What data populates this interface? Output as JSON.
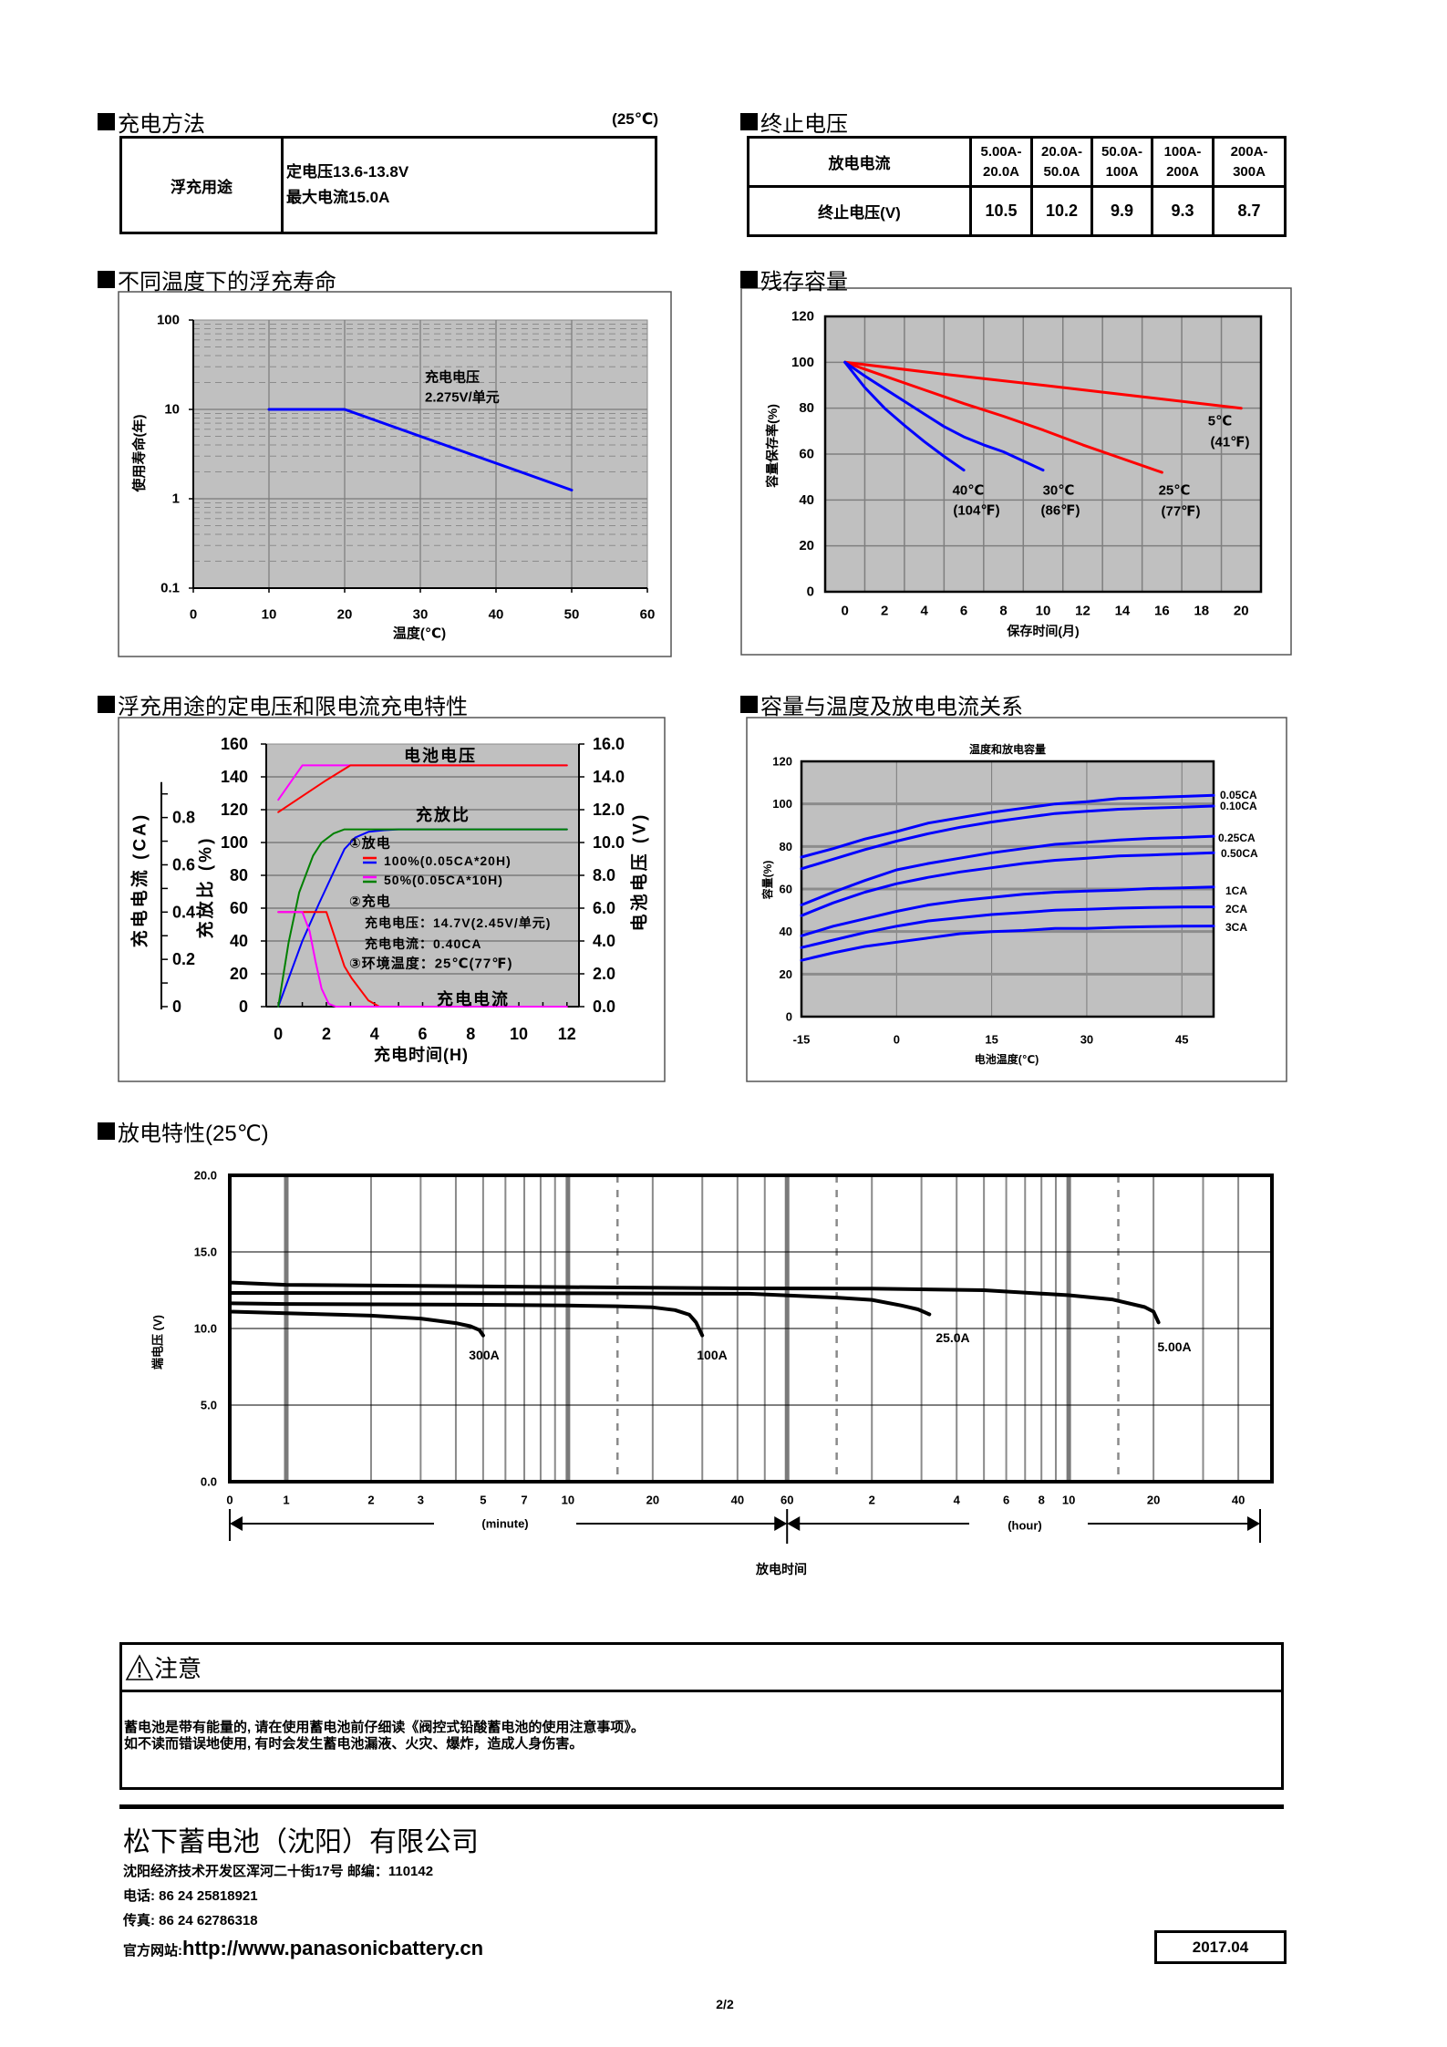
{
  "page": {
    "number": "2/2"
  },
  "charging_method": {
    "title": "充电方法",
    "temperature_note": "(25℃)",
    "row": {
      "label": "浮充用途",
      "line1": "定电压13.6-13.8V",
      "line2": "最大电流15.0A"
    }
  },
  "cutoff_voltage": {
    "title": "终止电压",
    "current_label": "放电电流",
    "voltage_label": "终止电压(V)",
    "columns": [
      {
        "current_from": "5.00A-",
        "current_to": "20.0A",
        "voltage": "10.5"
      },
      {
        "current_from": "20.0A-",
        "current_to": "50.0A",
        "voltage": "10.2"
      },
      {
        "current_from": "50.0A-",
        "current_to": "100A",
        "voltage": "9.9"
      },
      {
        "current_from": "100A-",
        "current_to": "200A",
        "voltage": "9.3"
      },
      {
        "current_from": "200A-",
        "current_to": "300A",
        "voltage": "8.7"
      }
    ]
  },
  "section_titles": {
    "float_life": "不同温度下的浮充寿命",
    "residual_capacity": "残存容量",
    "charging_characteristics": "浮充用途的定电压和限电流充电特性",
    "capacity_temperature": "容量与温度及放电电流关系",
    "discharge": "放电特性(25℃)"
  },
  "chart_data": [
    {
      "id": "float_life",
      "type": "line",
      "title": "",
      "xlabel": "温度(℃)",
      "ylabel": "使用寿命(年)",
      "xlim": [
        0,
        60
      ],
      "ylim": [
        0.1,
        100
      ],
      "yscale": "log",
      "grid": true,
      "xticks": [
        0,
        10,
        20,
        30,
        40,
        50,
        60
      ],
      "xtick_labels": [
        "0",
        "10",
        "20",
        "30",
        "40",
        "50",
        "60"
      ],
      "yticks": [
        100,
        10,
        1,
        0.1
      ],
      "ytick_labels": [
        "100",
        "10",
        "1",
        "0.1"
      ],
      "series": [
        {
          "name": "充电电压 2.275V/单元",
          "color": "#0000ff",
          "x": [
            10,
            20,
            30,
            40,
            50
          ],
          "y": [
            10,
            10,
            5,
            2.5,
            1.25
          ]
        }
      ],
      "annotations": [
        "充电电压",
        "2.275V/单元"
      ]
    },
    {
      "id": "residual_capacity",
      "type": "line",
      "title": "",
      "xlabel": "保存时间(月)",
      "ylabel": "容量保存率(%)",
      "xlim": [
        -1,
        21
      ],
      "ylim": [
        0,
        120
      ],
      "grid": true,
      "xticks": [
        0,
        2,
        4,
        6,
        8,
        10,
        12,
        14,
        16,
        18,
        20
      ],
      "xtick_labels": [
        "0",
        "2",
        "4",
        "6",
        "8",
        "10",
        "12",
        "14",
        "16",
        "18",
        "20"
      ],
      "yticks": [
        0,
        20,
        40,
        60,
        80,
        100,
        120
      ],
      "ytick_labels": [
        "0",
        "20",
        "40",
        "60",
        "80",
        "100",
        "120"
      ],
      "series": [
        {
          "name": "5℃",
          "label_lines": [
            "5℃",
            "(41℉)"
          ],
          "color": "#ff0000",
          "x": [
            0,
            5,
            10,
            15,
            20
          ],
          "y": [
            100,
            94.8,
            90,
            85,
            80
          ]
        },
        {
          "name": "25℃",
          "label_lines": [
            "25℃",
            "(77℉)"
          ],
          "color": "#ff0000",
          "x": [
            0,
            2,
            4,
            6,
            8,
            10,
            12,
            14,
            16
          ],
          "y": [
            100,
            94,
            88,
            82,
            76.5,
            70.5,
            64,
            58,
            52
          ]
        },
        {
          "name": "30℃",
          "label_lines": [
            "30℃",
            "(86℉)"
          ],
          "color": "#0000ff",
          "x": [
            0,
            1,
            2,
            3,
            4,
            5,
            6,
            7,
            8,
            9,
            10
          ],
          "y": [
            100,
            94,
            88.5,
            83,
            77.5,
            72,
            67.5,
            64,
            61,
            57,
            53
          ]
        },
        {
          "name": "40℃",
          "label_lines": [
            "40℃",
            "(104℉)"
          ],
          "color": "#0000ff",
          "x": [
            0,
            1,
            2,
            3,
            4,
            5,
            6
          ],
          "y": [
            100,
            89,
            80,
            72.5,
            65.5,
            59,
            53
          ]
        }
      ]
    },
    {
      "id": "charging_characteristics",
      "type": "line",
      "title": "",
      "xlabel": "充电时间(H)",
      "ylabel": "充放比 (%)",
      "ylabel_right": "电池电压 (V)",
      "ylabel_current": "充电电流 (CA)",
      "xlim": [
        -0.5,
        12.5
      ],
      "ylim": [
        0,
        160
      ],
      "ylim_right": [
        0,
        16
      ],
      "ylim_current": [
        0,
        1.111
      ],
      "current_axis_range": [
        0,
        0.95
      ],
      "grid": "horizontal",
      "xticks": [
        0,
        2,
        4,
        6,
        8,
        10,
        12
      ],
      "xtick_labels": [
        "0",
        "2",
        "4",
        "6",
        "8",
        "10",
        "12"
      ],
      "yticks": [
        0,
        20,
        40,
        60,
        80,
        100,
        120,
        140,
        160
      ],
      "ytick_labels": [
        "0",
        "20",
        "40",
        "60",
        "80",
        "100",
        "120",
        "140",
        "160"
      ],
      "yticks_right": [
        0,
        2,
        4,
        6,
        8,
        10,
        12,
        14,
        16
      ],
      "ytick_labels_right": [
        "0.0",
        "2.0",
        "4.0",
        "6.0",
        "8.0",
        "10.0",
        "12.0",
        "14.0",
        "16.0"
      ],
      "current_ticks": [
        0,
        0.1,
        0.2,
        0.3,
        0.4,
        0.5,
        0.6,
        0.7,
        0.8,
        0.9
      ],
      "current_labeled_ticks": [
        0,
        0.2,
        0.4,
        0.6,
        0.8
      ],
      "current_tick_labels": [
        "0",
        "0.2",
        "0.4",
        "0.6",
        "0.8"
      ],
      "series": [
        {
          "name": "充放比 100%",
          "axis": "left",
          "color": "#0000ff",
          "x": [
            0,
            1.0,
            1.7,
            2.3,
            2.75,
            3.2,
            3.75,
            4.4,
            5,
            12
          ],
          "y": [
            0,
            40,
            63,
            82,
            96,
            103,
            106.5,
            107.5,
            108,
            108
          ]
        },
        {
          "name": "充放比 50%",
          "axis": "left",
          "color": "#008000",
          "x": [
            0,
            0.43,
            0.87,
            1.45,
            1.8,
            2.3,
            2.75,
            12
          ],
          "y": [
            0,
            39,
            69.5,
            92,
            100,
            105.5,
            108,
            108
          ]
        },
        {
          "name": "电池电压 50%",
          "axis": "right",
          "color": "#ff00ff",
          "x": [
            0,
            1.0,
            12
          ],
          "y": [
            12.6,
            14.7,
            14.7
          ]
        },
        {
          "name": "电池电压 100%",
          "axis": "right",
          "color": "#ff0000",
          "x": [
            0,
            2.0,
            3.0,
            12
          ],
          "y": [
            11.85,
            13.8,
            14.7,
            14.7
          ]
        },
        {
          "name": "充电电流 100%",
          "axis": "current",
          "color": "#ff0000",
          "x": [
            0,
            2.0,
            2.75,
            3.05,
            3.75,
            4.2,
            12
          ],
          "y": [
            0.4,
            0.4,
            0.17,
            0.12,
            0.026,
            0,
            0
          ]
        },
        {
          "name": "充电电流 50%",
          "axis": "current",
          "color": "#ff00ff",
          "x": [
            0,
            1.0,
            1.3,
            1.55,
            1.8,
            2.1,
            2.4,
            12
          ],
          "y": [
            0.4,
            0.4,
            0.32,
            0.19,
            0.076,
            0.012,
            0,
            0
          ]
        }
      ],
      "annotations": {
        "voltage": "电池电压",
        "ratio": "充放比",
        "current": "充电电流"
      },
      "legend": {
        "discharge_title": "①放电",
        "items": [
          {
            "label": "100%(0.05CA*20H)",
            "colors": [
              "#ff0000",
              "#0000ff"
            ]
          },
          {
            "label": "50%(0.05CA*10H)",
            "colors": [
              "#ff00ff",
              "#008000"
            ]
          }
        ],
        "charge_title": "②充电",
        "charge_voltage": "充电电压：14.7V(2.45V/单元)",
        "charge_current": "充电电流：0.40CA",
        "temperature": "③环境温度：25℃(77℉)"
      }
    },
    {
      "id": "capacity_temperature",
      "type": "line",
      "title": "温度和放电容量",
      "xlabel": "电池温度(℃)",
      "ylabel": "容量(%)",
      "xlim": [
        -15,
        50
      ],
      "ylim": [
        0,
        120
      ],
      "grid": true,
      "xticks": [
        -15,
        0,
        15,
        30,
        45
      ],
      "xtick_labels": [
        "-15",
        "0",
        "15",
        "30",
        "45"
      ],
      "yticks": [
        0,
        20,
        40,
        60,
        80,
        100,
        120
      ],
      "ytick_labels": [
        "0",
        "20",
        "40",
        "60",
        "80",
        "100",
        "120"
      ],
      "x": [
        -15,
        -10,
        -5,
        0,
        5,
        10,
        15,
        20,
        25,
        30,
        35,
        40,
        45,
        50
      ],
      "series": [
        {
          "name": "0.05CA",
          "color": "#0000ff",
          "values": [
            75,
            79,
            83.5,
            87,
            91,
            93.5,
            96,
            98,
            100,
            101,
            102.5,
            103,
            103.5,
            104
          ]
        },
        {
          "name": "0.10CA",
          "color": "#0000ff",
          "values": [
            69.5,
            74,
            78.5,
            82.5,
            86,
            89,
            91.5,
            93.5,
            95.5,
            96.5,
            97.5,
            98,
            98.5,
            99
          ]
        },
        {
          "name": "0.25CA",
          "color": "#0000ff",
          "values": [
            52.5,
            58.5,
            64,
            69,
            72,
            74.5,
            77,
            79,
            81,
            82,
            83,
            83.8,
            84.2,
            84.8
          ]
        },
        {
          "name": "0.50CA",
          "color": "#0000ff",
          "values": [
            47.5,
            53.5,
            58.5,
            62.5,
            65.5,
            68,
            70,
            72,
            73.5,
            74.5,
            75.5,
            76,
            76.5,
            77
          ]
        },
        {
          "name": "1CA",
          "color": "#0000ff",
          "values": [
            38,
            42.5,
            46,
            49.5,
            52.5,
            54.5,
            56,
            57.5,
            58.5,
            59,
            59.5,
            60.2,
            60.5,
            61
          ]
        },
        {
          "name": "2CA",
          "color": "#0000ff",
          "values": [
            32.5,
            36,
            39.5,
            42.5,
            45,
            46.5,
            48,
            49,
            50,
            50.5,
            51,
            51.3,
            51.5,
            51.6
          ]
        },
        {
          "name": "3CA",
          "color": "#0000ff",
          "values": [
            26.5,
            30,
            33,
            35,
            37,
            39,
            40,
            40.5,
            41.5,
            41.5,
            42,
            42.3,
            42.5,
            42.6
          ]
        }
      ]
    },
    {
      "id": "discharge",
      "type": "line",
      "title": "",
      "xlabel": "放电时间",
      "ylabel": "端电压 (V)",
      "xscale": "log",
      "x_unit": "minute",
      "xlim": [
        0.63,
        3160
      ],
      "ylim": [
        0,
        20
      ],
      "yticks": [
        0,
        5,
        10,
        15,
        20
      ],
      "ytick_labels": [
        "0.0",
        "5.0",
        "10.0",
        "15.0",
        "20.0"
      ],
      "xtick_labels": [
        {
          "v": 0.63,
          "label": "0"
        },
        {
          "v": 1,
          "label": "1"
        },
        {
          "v": 2,
          "label": "2"
        },
        {
          "v": 3,
          "label": "3"
        },
        {
          "v": 5,
          "label": "5"
        },
        {
          "v": 7,
          "label": "7"
        },
        {
          "v": 10,
          "label": "10"
        },
        {
          "v": 20,
          "label": "20"
        },
        {
          "v": 40,
          "label": "40"
        },
        {
          "v": 60,
          "label": "60"
        },
        {
          "v": 120,
          "label": "2"
        },
        {
          "v": 240,
          "label": "4"
        },
        {
          "v": 360,
          "label": "6"
        },
        {
          "v": 480,
          "label": "8"
        },
        {
          "v": 600,
          "label": "10"
        },
        {
          "v": 1200,
          "label": "20"
        },
        {
          "v": 2400,
          "label": "40"
        }
      ],
      "major_gridlines": [
        1,
        10,
        60,
        600
      ],
      "dashed_gridlines": [
        15,
        90,
        900
      ],
      "gridlines": [
        2,
        3,
        4,
        5,
        6,
        7,
        8,
        9,
        20,
        30,
        40,
        50,
        120,
        180,
        240,
        300,
        360,
        420,
        480,
        540,
        1200,
        1800,
        2400
      ],
      "segment_labels": {
        "minute": "(minute)",
        "hour": "(hour)"
      },
      "series": [
        {
          "name": "300A",
          "x": [
            0.63,
            1,
            2,
            3,
            4,
            4.5,
            4.85,
            5.0
          ],
          "y": [
            11.1,
            11.0,
            10.84,
            10.65,
            10.35,
            10.15,
            9.9,
            9.55
          ]
        },
        {
          "name": "100A",
          "x": [
            0.63,
            1,
            5,
            10,
            15,
            20,
            24,
            27,
            28.5,
            30
          ],
          "y": [
            11.65,
            11.6,
            11.55,
            11.5,
            11.45,
            11.38,
            11.2,
            10.9,
            10.4,
            9.55
          ]
        },
        {
          "name": "25.0A",
          "x": [
            0.63,
            10,
            44,
            90,
            120,
            153,
            175,
            192
          ],
          "y": [
            12.32,
            12.3,
            12.27,
            12.02,
            11.87,
            11.5,
            11.25,
            10.92
          ]
        },
        {
          "name": "5.00A",
          "x": [
            0.63,
            1,
            10,
            44,
            120,
            300,
            600,
            855,
            1117,
            1200,
            1250
          ],
          "y": [
            13.0,
            12.85,
            12.7,
            12.62,
            12.6,
            12.5,
            12.17,
            11.9,
            11.4,
            11.1,
            10.4
          ]
        }
      ]
    }
  ],
  "notice": {
    "title": "注意",
    "lines": [
      "蓄电池是带有能量的, 请在使用蓄电池前仔细读《阀控式铅酸蓄电池的使用注意事项》。",
      "如不读而错误地使用, 有时会发生蓄电池漏液、火灾、爆炸，造成人身伤害。"
    ]
  },
  "footer": {
    "company": "松下蓄电池（沈阳）有限公司",
    "address": "沈阳经济技术开发区浑河二十街17号 邮编：110142",
    "phone": "电话: 86 24 25818921",
    "fax": "传真: 86 24 62786318",
    "website_label": "官方网站: ",
    "website_url": "http://www.panasonicbattery.cn",
    "date": "2017.04"
  }
}
